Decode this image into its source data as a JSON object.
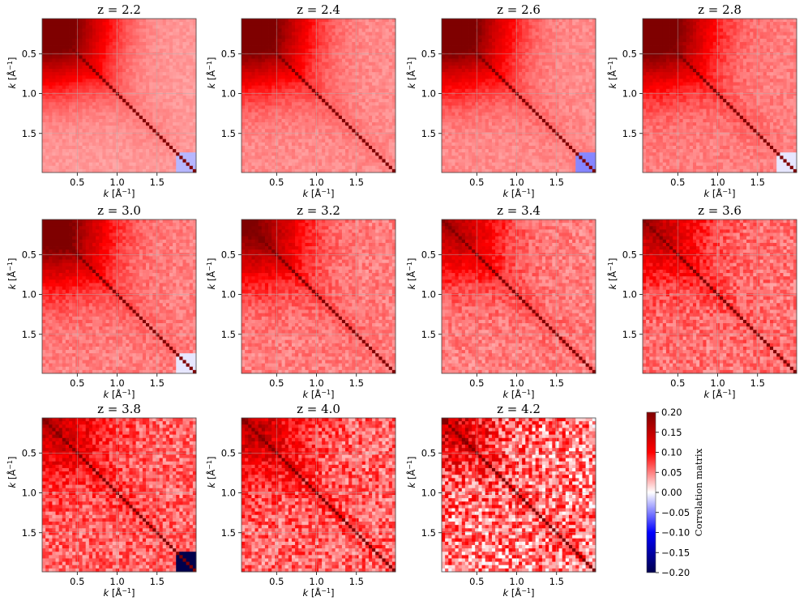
{
  "chart_data": {
    "type": "heatmap",
    "figure": "Correlation matrices of the power spectrum across wavenumber bins",
    "panel_titles": [
      "z = 2.2",
      "z = 2.4",
      "z = 2.6",
      "z = 2.8",
      "z = 3.0",
      "z = 3.2",
      "z = 3.4",
      "z = 3.6",
      "z = 3.8",
      "z = 4.0",
      "z = 4.2"
    ],
    "redshifts": [
      2.2,
      2.4,
      2.6,
      2.8,
      3.0,
      3.2,
      3.4,
      3.6,
      3.8,
      4.0,
      4.2
    ],
    "xlabel": "k [Å⁻¹]",
    "ylabel": "k [Å⁻¹]",
    "xlabel_text": {
      "var": "k",
      "unit": "[Å",
      "sup": "−1",
      "close": "]"
    },
    "x_ticks": [
      "0.5",
      "1.0",
      "1.5"
    ],
    "y_ticks": [
      "0.5",
      "1.0",
      "1.5"
    ],
    "k_range": [
      0.06,
      1.99
    ],
    "n_bins": 46,
    "diagonal_value": 1.0,
    "grid": true,
    "colorbar": {
      "label": "Correlation matrix",
      "vmin": -0.2,
      "vmax": 0.2,
      "colormap": "seismic",
      "ticks": [
        "0.20",
        "0.15",
        "0.10",
        "0.05",
        "0.00",
        "−0.05",
        "−0.10",
        "−0.15",
        "−0.20"
      ],
      "tick_values": [
        0.2,
        0.15,
        0.1,
        0.05,
        0.0,
        -0.05,
        -0.1,
        -0.15,
        -0.2
      ]
    },
    "structure": {
      "low_k_peak": [
        0.2,
        0.2,
        0.2,
        0.2,
        0.17,
        0.13,
        0.09,
        0.08,
        0.07,
        0.07,
        0.06
      ],
      "background_level": [
        0.04,
        0.045,
        0.045,
        0.05,
        0.05,
        0.05,
        0.05,
        0.055,
        0.06,
        0.06,
        0.05
      ],
      "noise_amplitude": [
        0.006,
        0.008,
        0.008,
        0.01,
        0.012,
        0.014,
        0.016,
        0.02,
        0.03,
        0.035,
        0.055
      ],
      "highk_anticorrelation": [
        -0.03,
        0.0,
        -0.05,
        -0.01,
        -0.01,
        0.0,
        0.0,
        0.0,
        -0.25,
        0.0,
        0.0
      ]
    }
  }
}
